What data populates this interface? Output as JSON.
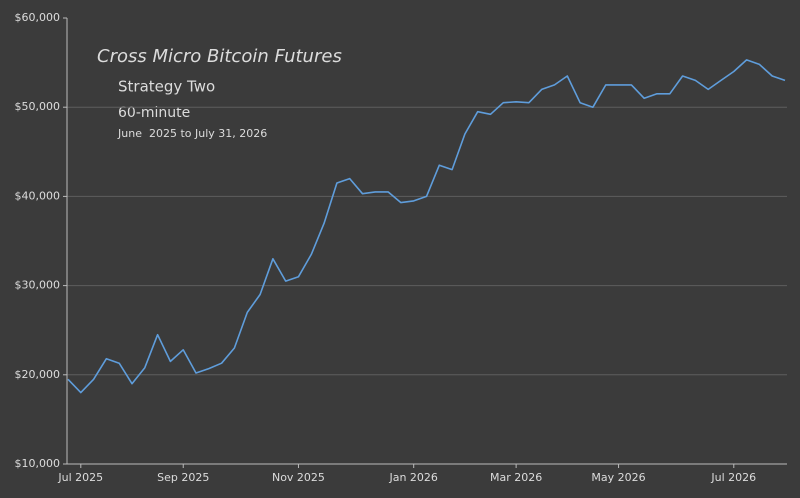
{
  "chart_data": {
    "type": "line",
    "title": "Cross Micro Bitcoin Futures",
    "subtitle": "Strategy Two",
    "interval": "60-minute",
    "date_range": "June  2025 to July 31, 2026",
    "categories": [
      null,
      "Jul 2025",
      null,
      null,
      null,
      null,
      null,
      null,
      null,
      "Sep 2025",
      null,
      null,
      null,
      null,
      null,
      null,
      null,
      null,
      "Nov 2025",
      null,
      null,
      null,
      null,
      null,
      null,
      null,
      null,
      "Jan 2026",
      null,
      null,
      null,
      null,
      null,
      null,
      null,
      "Mar 2026",
      null,
      null,
      null,
      null,
      null,
      null,
      null,
      "May 2026",
      null,
      null,
      null,
      null,
      null,
      null,
      null,
      null,
      "Jul 2026",
      null,
      null,
      null,
      null
    ],
    "values": [
      19500,
      18000,
      19500,
      21800,
      21300,
      19000,
      20800,
      24500,
      21500,
      22800,
      20200,
      20700,
      21300,
      23000,
      27000,
      29000,
      33000,
      30500,
      31000,
      33500,
      37000,
      41500,
      42000,
      40300,
      40500,
      40500,
      39300,
      39500,
      40000,
      43500,
      43000,
      47000,
      49500,
      49200,
      50500,
      50600,
      50500,
      52000,
      52500,
      53500,
      50500,
      50000,
      52500,
      52500,
      52500,
      51000,
      51500,
      51500,
      53500,
      53000,
      52000,
      53000,
      54000,
      55300,
      54800,
      53500,
      53000
    ],
    "color": "#5f9ddb",
    "ylim": [
      10000,
      60000
    ],
    "yticks": [
      {
        "value": 10000,
        "label": "$10,000"
      },
      {
        "value": 20000,
        "label": "$20,000"
      },
      {
        "value": 30000,
        "label": "$30,000"
      },
      {
        "value": 40000,
        "label": "$40,000"
      },
      {
        "value": 50000,
        "label": "$50,000"
      },
      {
        "value": 60000,
        "label": "$60,000"
      }
    ],
    "grid": true
  }
}
